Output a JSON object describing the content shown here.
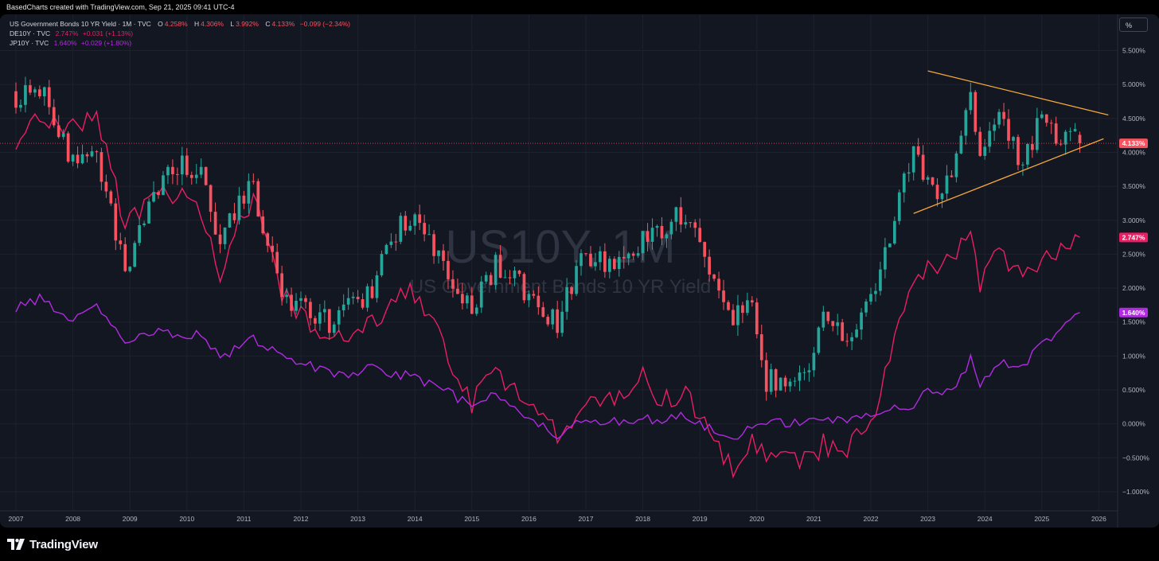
{
  "header": {
    "attribution": "BasedCharts created with TradingView.com, Sep 21, 2025 09:41 UTC-4"
  },
  "watermark": {
    "symbol": "US10Y, 1M",
    "description": "US Government Bonds 10 YR Yield"
  },
  "legend": {
    "main": {
      "symbol": "US Government Bonds 10 YR Yield · 1M · TVC",
      "open_label": "O",
      "open": "4.258%",
      "high_label": "H",
      "high": "4.306%",
      "low_label": "L",
      "low": "3.992%",
      "close_label": "C",
      "close": "4.133%",
      "change": "−0.099 (−2.34%)"
    },
    "de": {
      "symbol": "DE10Y · TVC",
      "value": "2.747%",
      "change": "+0.031 (+1.13%)"
    },
    "jp": {
      "symbol": "JP10Y · TVC",
      "value": "1.640%",
      "change": "+0.029 (+1.80%)"
    }
  },
  "scale_button": "%",
  "footer": {
    "brand": "TradingView"
  },
  "colors": {
    "background": "#131722",
    "up": "#26a69a",
    "down": "#f7525f",
    "de10y": "#e91e63",
    "jp10y": "#b12be0",
    "triangle": "#f5a73b",
    "grid": "#1e222d"
  },
  "chart_data": {
    "type": "candlestick",
    "timeframe": "1M",
    "x_range": [
      "2007-01",
      "2026-06"
    ],
    "x_ticks": [
      "2007",
      "2008",
      "2009",
      "2010",
      "2011",
      "2012",
      "2013",
      "2014",
      "2015",
      "2016",
      "2017",
      "2018",
      "2019",
      "2020",
      "2021",
      "2022",
      "2023",
      "2024",
      "2025",
      "2026"
    ],
    "y_range": [
      -1.15,
      5.75
    ],
    "y_ticks": [
      -1.0,
      -0.5,
      0.0,
      0.5,
      1.0,
      1.5,
      2.0,
      2.5,
      3.0,
      3.5,
      4.0,
      4.5,
      5.0,
      5.5
    ],
    "y_tick_labels": [
      "−1.000%",
      "−0.500%",
      "0.000%",
      "0.500%",
      "1.000%",
      "1.500%",
      "2.000%",
      "2.500%",
      "3.000%",
      "3.500%",
      "4.000%",
      "4.500%",
      "5.000%",
      "5.500%"
    ],
    "last_labels": {
      "us10y": "4.133%",
      "de10y": "2.747%",
      "jp10y": "1.640%"
    },
    "us10y_close_anchors": [
      [
        "2007-01",
        4.8
      ],
      [
        "2007-06",
        5.0
      ],
      [
        "2007-12",
        4.0
      ],
      [
        "2008-06",
        4.0
      ],
      [
        "2008-12",
        2.2
      ],
      [
        "2009-06",
        3.5
      ],
      [
        "2009-12",
        3.8
      ],
      [
        "2010-04",
        3.7
      ],
      [
        "2010-08",
        2.6
      ],
      [
        "2010-12",
        3.3
      ],
      [
        "2011-03",
        3.45
      ],
      [
        "2011-09",
        1.9
      ],
      [
        "2012-07",
        1.5
      ],
      [
        "2012-12",
        1.75
      ],
      [
        "2013-05",
        2.1
      ],
      [
        "2013-08",
        2.8
      ],
      [
        "2013-12",
        3.0
      ],
      [
        "2014-06",
        2.5
      ],
      [
        "2015-01",
        1.65
      ],
      [
        "2015-06",
        2.35
      ],
      [
        "2016-01",
        1.9
      ],
      [
        "2016-07",
        1.45
      ],
      [
        "2016-12",
        2.45
      ],
      [
        "2017-09",
        2.3
      ],
      [
        "2018-01",
        2.7
      ],
      [
        "2018-05",
        2.85
      ],
      [
        "2018-10",
        3.15
      ],
      [
        "2019-01",
        2.65
      ],
      [
        "2019-08",
        1.5
      ],
      [
        "2019-12",
        1.9
      ],
      [
        "2020-03",
        0.65
      ],
      [
        "2020-07",
        0.55
      ],
      [
        "2020-12",
        0.9
      ],
      [
        "2021-03",
        1.75
      ],
      [
        "2021-07",
        1.25
      ],
      [
        "2022-01",
        1.8
      ],
      [
        "2022-06",
        3.0
      ],
      [
        "2022-10",
        4.05
      ],
      [
        "2023-01",
        3.5
      ],
      [
        "2023-04",
        3.45
      ],
      [
        "2023-07",
        3.95
      ],
      [
        "2023-10",
        4.9
      ],
      [
        "2023-12",
        3.9
      ],
      [
        "2024-04",
        4.7
      ],
      [
        "2024-09",
        3.8
      ],
      [
        "2025-01",
        4.55
      ],
      [
        "2025-04",
        4.15
      ],
      [
        "2025-06",
        4.25
      ],
      [
        "2025-08",
        4.23
      ],
      [
        "2025-09",
        4.133
      ]
    ],
    "us10y_last_candle": {
      "open": 4.258,
      "high": 4.306,
      "low": 3.992,
      "close": 4.133
    },
    "series": [
      {
        "name": "DE10Y",
        "anchors": [
          [
            "2007-01",
            3.9
          ],
          [
            "2007-06",
            4.6
          ],
          [
            "2007-12",
            4.35
          ],
          [
            "2008-06",
            4.6
          ],
          [
            "2008-12",
            2.95
          ],
          [
            "2009-06",
            3.4
          ],
          [
            "2009-12",
            3.4
          ],
          [
            "2010-04",
            3.1
          ],
          [
            "2010-08",
            2.15
          ],
          [
            "2010-12",
            2.95
          ],
          [
            "2011-03",
            3.35
          ],
          [
            "2011-09",
            1.9
          ],
          [
            "2012-07",
            1.25
          ],
          [
            "2012-12",
            1.3
          ],
          [
            "2013-05",
            1.5
          ],
          [
            "2013-08",
            1.85
          ],
          [
            "2013-12",
            1.95
          ],
          [
            "2014-06",
            1.3
          ],
          [
            "2015-01",
            0.3
          ],
          [
            "2015-06",
            0.75
          ],
          [
            "2016-01",
            0.3
          ],
          [
            "2016-07",
            -0.15
          ],
          [
            "2016-12",
            0.2
          ],
          [
            "2017-09",
            0.45
          ],
          [
            "2018-01",
            0.7
          ],
          [
            "2018-05",
            0.35
          ],
          [
            "2018-10",
            0.45
          ],
          [
            "2019-01",
            0.15
          ],
          [
            "2019-08",
            -0.7
          ],
          [
            "2019-12",
            -0.2
          ],
          [
            "2020-03",
            -0.5
          ],
          [
            "2020-07",
            -0.45
          ],
          [
            "2020-12",
            -0.57
          ],
          [
            "2021-03",
            -0.3
          ],
          [
            "2021-07",
            -0.45
          ],
          [
            "2022-01",
            0.0
          ],
          [
            "2022-06",
            1.35
          ],
          [
            "2022-10",
            2.15
          ],
          [
            "2023-01",
            2.3
          ],
          [
            "2023-04",
            2.3
          ],
          [
            "2023-07",
            2.5
          ],
          [
            "2023-10",
            2.8
          ],
          [
            "2023-12",
            2.0
          ],
          [
            "2024-04",
            2.6
          ],
          [
            "2024-09",
            2.1
          ],
          [
            "2025-01",
            2.45
          ],
          [
            "2025-04",
            2.45
          ],
          [
            "2025-06",
            2.6
          ],
          [
            "2025-08",
            2.72
          ],
          [
            "2025-09",
            2.747
          ]
        ]
      },
      {
        "name": "JP10Y",
        "anchors": [
          [
            "2007-01",
            1.7
          ],
          [
            "2007-06",
            1.85
          ],
          [
            "2007-12",
            1.5
          ],
          [
            "2008-06",
            1.75
          ],
          [
            "2008-12",
            1.2
          ],
          [
            "2009-06",
            1.35
          ],
          [
            "2009-12",
            1.3
          ],
          [
            "2010-04",
            1.35
          ],
          [
            "2010-08",
            0.95
          ],
          [
            "2010-12",
            1.15
          ],
          [
            "2011-03",
            1.25
          ],
          [
            "2011-09",
            1.0
          ],
          [
            "2012-07",
            0.75
          ],
          [
            "2012-12",
            0.75
          ],
          [
            "2013-05",
            0.85
          ],
          [
            "2013-08",
            0.75
          ],
          [
            "2013-12",
            0.7
          ],
          [
            "2014-06",
            0.55
          ],
          [
            "2015-01",
            0.25
          ],
          [
            "2015-06",
            0.45
          ],
          [
            "2016-01",
            0.1
          ],
          [
            "2016-07",
            -0.2
          ],
          [
            "2016-12",
            0.05
          ],
          [
            "2017-09",
            0.05
          ],
          [
            "2018-01",
            0.08
          ],
          [
            "2018-05",
            0.05
          ],
          [
            "2018-10",
            0.12
          ],
          [
            "2019-01",
            0.0
          ],
          [
            "2019-08",
            -0.25
          ],
          [
            "2019-12",
            0.0
          ],
          [
            "2020-03",
            0.0
          ],
          [
            "2020-07",
            0.02
          ],
          [
            "2020-12",
            0.02
          ],
          [
            "2021-03",
            0.1
          ],
          [
            "2021-07",
            0.02
          ],
          [
            "2022-01",
            0.17
          ],
          [
            "2022-06",
            0.23
          ],
          [
            "2022-10",
            0.25
          ],
          [
            "2023-01",
            0.5
          ],
          [
            "2023-04",
            0.4
          ],
          [
            "2023-07",
            0.6
          ],
          [
            "2023-10",
            0.95
          ],
          [
            "2023-12",
            0.6
          ],
          [
            "2024-04",
            0.9
          ],
          [
            "2024-09",
            0.85
          ],
          [
            "2025-01",
            1.2
          ],
          [
            "2025-04",
            1.3
          ],
          [
            "2025-06",
            1.45
          ],
          [
            "2025-08",
            1.6
          ],
          [
            "2025-09",
            1.64
          ]
        ]
      }
    ],
    "trendlines": [
      {
        "name": "upper",
        "from": [
          "2023-01",
          5.2
        ],
        "to": [
          "2026-03",
          4.55
        ]
      },
      {
        "name": "lower",
        "from": [
          "2022-10",
          3.1
        ],
        "to": [
          "2026-02",
          4.2
        ]
      }
    ]
  }
}
